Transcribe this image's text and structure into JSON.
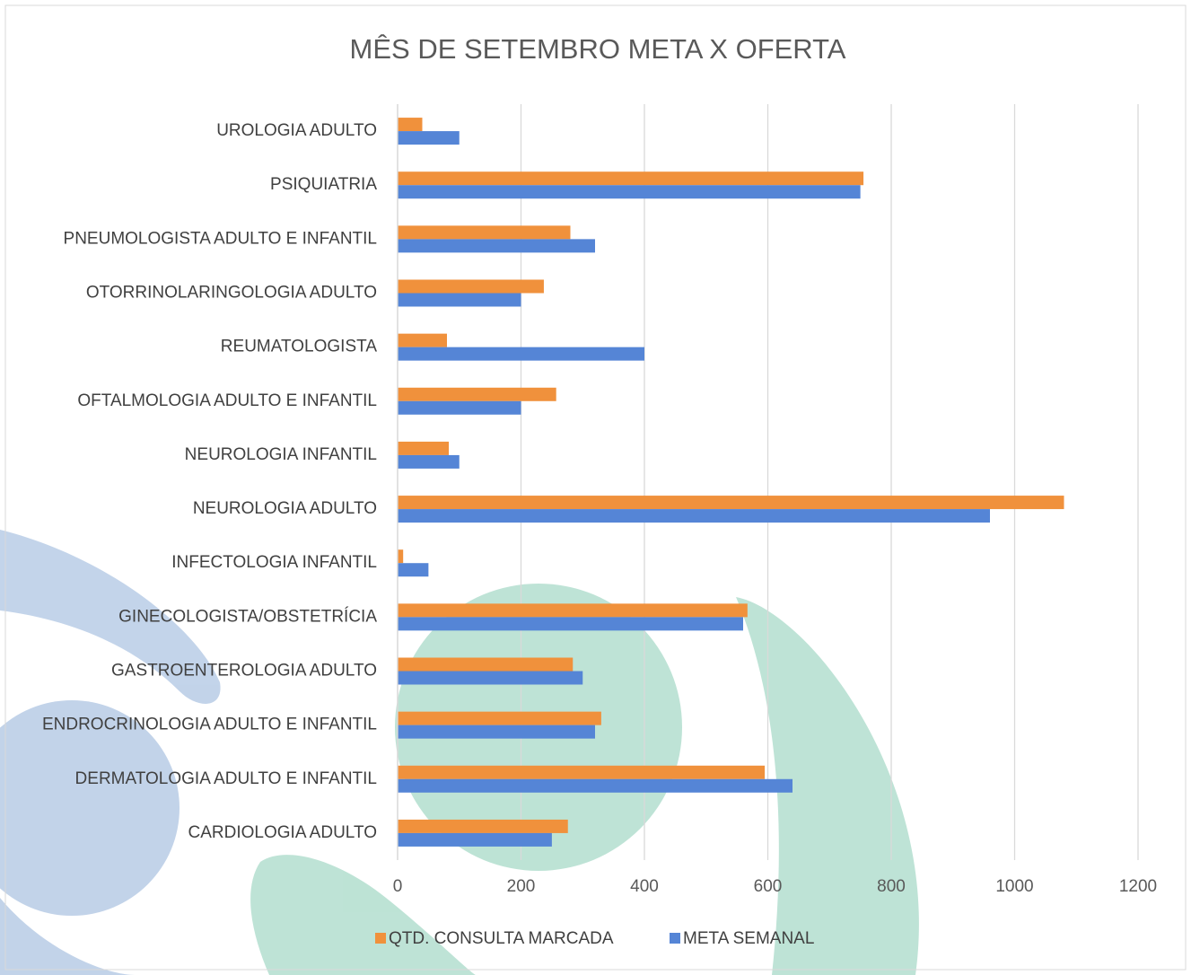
{
  "chart_data": {
    "type": "barh",
    "title": "MÊS DE SETEMBRO META X OFERTA",
    "categories": [
      "UROLOGIA ADULTO",
      "PSIQUIATRIA",
      "PNEUMOLOGISTA ADULTO E INFANTIL",
      "OTORRINOLARINGOLOGIA ADULTO",
      "REUMATOLOGISTA",
      "OFTALMOLOGIA ADULTO E INFANTIL",
      "NEUROLOGIA INFANTIL",
      "NEUROLOGIA ADULTO",
      "INFECTOLOGIA INFANTIL",
      "GINECOLOGISTA/OBSTETRÍCIA",
      "GASTROENTEROLOGIA ADULTO",
      "ENDROCRINOLOGIA ADULTO E INFANTIL",
      "DERMATOLOGIA ADULTO E INFANTIL",
      "CARDIOLOGIA ADULTO"
    ],
    "series": [
      {
        "name": "QTD. CONSULTA MARCADA",
        "color": "#f0913c",
        "values": [
          40,
          755,
          280,
          237,
          80,
          257,
          83,
          1080,
          9,
          567,
          284,
          330,
          595,
          276
        ]
      },
      {
        "name": "META SEMANAL",
        "color": "#5585d6",
        "values": [
          100,
          750,
          320,
          200,
          400,
          200,
          100,
          960,
          50,
          560,
          300,
          320,
          640,
          250
        ]
      }
    ],
    "xlim": [
      0,
      1200
    ],
    "xticks": [
      0,
      200,
      400,
      600,
      800,
      1000,
      1200
    ],
    "grid": true,
    "legend": "bottom"
  }
}
